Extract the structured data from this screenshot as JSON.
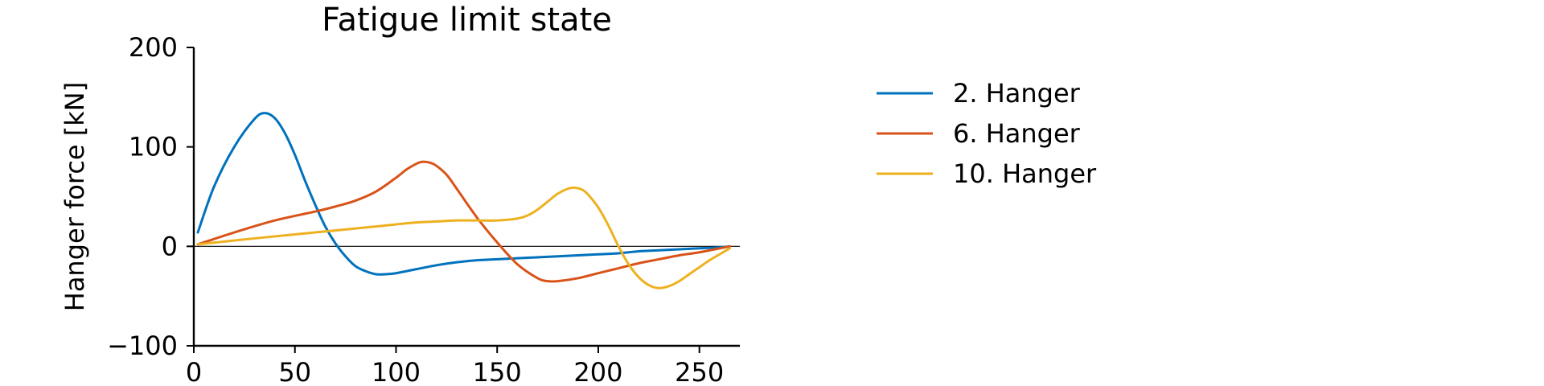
{
  "chart_data": {
    "type": "line",
    "title": "Fatigue limit state",
    "xlabel": "",
    "ylabel": "Hanger force [kN]",
    "xlim": [
      0,
      270
    ],
    "ylim": [
      -100,
      200
    ],
    "xticks": [
      0,
      50,
      100,
      150,
      200,
      250
    ],
    "xtick_labels": [
      "0",
      "50",
      "100",
      "150",
      "200",
      "250"
    ],
    "yticks": [
      -100,
      0,
      100,
      200
    ],
    "ytick_labels": [
      "−100",
      "0",
      "100",
      "200"
    ],
    "zero_line": true,
    "grid": false,
    "legend_position": "right, outside plot",
    "series": [
      {
        "name": "2. Hanger",
        "color": "#0072BD",
        "x": [
          2,
          10,
          20,
          30,
          35,
          40,
          45,
          50,
          55,
          60,
          65,
          70,
          75,
          80,
          85,
          90,
          95,
          100,
          110,
          120,
          130,
          140,
          150,
          160,
          170,
          180,
          190,
          200,
          210,
          220,
          230,
          240,
          250,
          260,
          265
        ],
        "y": [
          14,
          60,
          100,
          128,
          134,
          129,
          114,
          92,
          66,
          42,
          20,
          3,
          -10,
          -20,
          -25,
          -28,
          -28,
          -27,
          -23,
          -19,
          -16,
          -14,
          -13,
          -12,
          -11,
          -10,
          -9,
          -8,
          -7,
          -5,
          -4,
          -3,
          -2,
          -1,
          0
        ]
      },
      {
        "name": "6. Hanger",
        "color": "#D95319",
        "x": [
          2,
          20,
          40,
          60,
          70,
          80,
          90,
          100,
          105,
          110,
          113,
          117,
          120,
          125,
          130,
          140,
          150,
          160,
          170,
          175,
          180,
          190,
          200,
          210,
          220,
          230,
          240,
          250,
          265
        ],
        "y": [
          2,
          14,
          26,
          35,
          40,
          46,
          55,
          69,
          77,
          83,
          85,
          84,
          81,
          72,
          58,
          29,
          4,
          -18,
          -32,
          -35,
          -35,
          -32,
          -27,
          -22,
          -17,
          -13,
          -9,
          -6,
          0
        ]
      },
      {
        "name": "10. Hanger",
        "color": "#EDB120",
        "x": [
          2,
          30,
          60,
          90,
          110,
          120,
          130,
          140,
          150,
          160,
          165,
          170,
          175,
          180,
          185,
          188,
          192,
          195,
          200,
          205,
          210,
          215,
          220,
          225,
          230,
          235,
          240,
          245,
          250,
          255,
          260,
          265
        ],
        "y": [
          2,
          8,
          14,
          20,
          24,
          25,
          26,
          26,
          26,
          28,
          31,
          37,
          45,
          53,
          58,
          59,
          57,
          52,
          39,
          21,
          0,
          -18,
          -31,
          -39,
          -42,
          -40,
          -35,
          -28,
          -21,
          -14,
          -8,
          -2
        ]
      }
    ]
  }
}
